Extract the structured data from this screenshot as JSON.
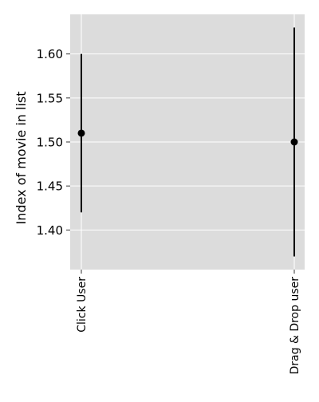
{
  "chart_data": {
    "type": "scatter",
    "title": "",
    "xlabel": "",
    "ylabel": "Index of movie in list",
    "categories": [
      "Click User",
      "Drag & Drop user"
    ],
    "points": [
      {
        "category": "Click User",
        "value": 1.51,
        "lower": 1.42,
        "upper": 1.6
      },
      {
        "category": "Drag & Drop user",
        "value": 1.5,
        "lower": 1.37,
        "upper": 1.63
      }
    ],
    "ylim": [
      1.355,
      1.645
    ],
    "yticks": [
      "1.40",
      "1.45",
      "1.50",
      "1.55",
      "1.60"
    ],
    "grid": true,
    "legend": "none",
    "colors": {
      "background": "#dcdcdc",
      "grid": "#ffffff",
      "marker": "#000000",
      "errorbar": "#000000",
      "text": "#000000"
    }
  }
}
